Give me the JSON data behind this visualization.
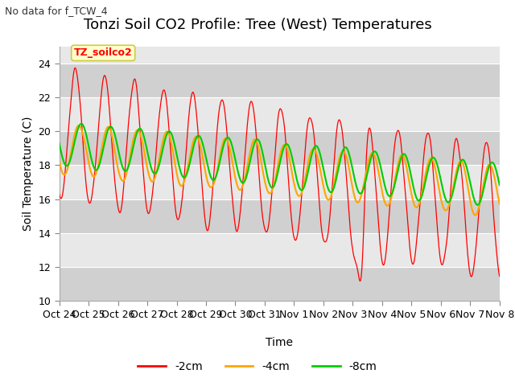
{
  "title": "Tonzi Soil CO2 Profile: Tree (West) Temperatures",
  "subtitle": "No data for f_TCW_4",
  "ylabel": "Soil Temperature (C)",
  "xlabel": "Time",
  "ylim": [
    10,
    25
  ],
  "yticks": [
    10,
    12,
    14,
    16,
    18,
    20,
    22,
    24
  ],
  "line_colors": {
    "2cm": "#ff0000",
    "4cm": "#ffa500",
    "8cm": "#00cc00"
  },
  "legend_labels": [
    "-2cm",
    "-4cm",
    "-8cm"
  ],
  "box_label": "TZ_soilco2",
  "box_facecolor": "#ffffcc",
  "box_edgecolor": "#cccc44",
  "bg_color": "#ffffff",
  "plot_bg_light": "#e8e8e8",
  "plot_bg_dark": "#d0d0d0",
  "grid_color": "#ffffff",
  "tick_label_fontsize": 9,
  "title_fontsize": 13,
  "n_points": 720,
  "start_day": 0,
  "end_day": 15.0,
  "x_tick_positions": [
    0,
    1,
    2,
    3,
    4,
    5,
    6,
    7,
    8,
    9,
    10,
    11,
    12,
    13,
    14,
    15
  ],
  "x_tick_labels": [
    "Oct 24",
    "Oct 25",
    "Oct 26",
    "Oct 27",
    "Oct 28",
    "Oct 29",
    "Oct 30",
    "Oct 31",
    "Nov 1",
    "Nov 2",
    "Nov 3",
    "Nov 4",
    "Nov 5",
    "Nov 6",
    "Nov 7",
    "Nov 8"
  ]
}
